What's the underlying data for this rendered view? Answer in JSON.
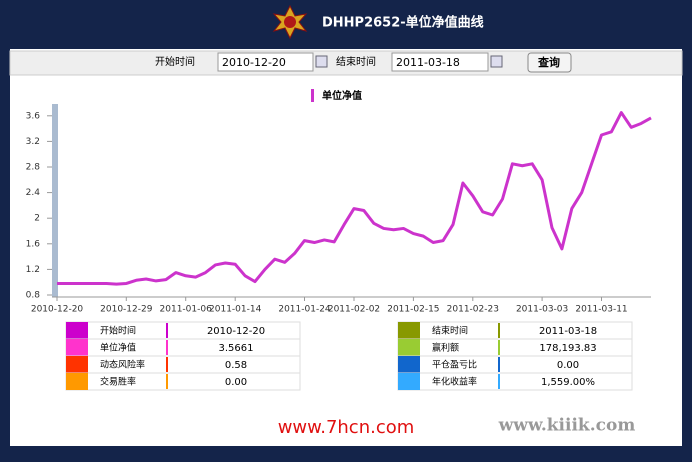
{
  "chart_data": {
    "type": "line",
    "title": "DHHP2652-单位净值曲线",
    "categories": [
      "2010-12-20",
      null,
      null,
      null,
      null,
      null,
      null,
      "2010-12-29",
      null,
      null,
      null,
      null,
      null,
      "2011-01-06",
      null,
      null,
      null,
      null,
      "2011-01-14",
      null,
      null,
      null,
      null,
      null,
      null,
      "2011-01-24",
      null,
      null,
      null,
      null,
      "2011-02-02",
      null,
      null,
      null,
      null,
      null,
      "2011-02-15",
      null,
      null,
      null,
      null,
      null,
      "2011-02-23",
      null,
      null,
      null,
      null,
      null,
      null,
      "2011-03-03",
      null,
      null,
      null,
      null,
      null,
      "2011-03-11",
      null,
      null,
      null,
      null,
      null
    ],
    "series": [
      {
        "name": "单位净值",
        "color": "#cc33cc",
        "values": [
          0.98,
          0.98,
          0.98,
          0.98,
          0.98,
          0.98,
          0.97,
          0.98,
          1.03,
          1.05,
          1.02,
          1.04,
          1.15,
          1.1,
          1.08,
          1.15,
          1.27,
          1.3,
          1.28,
          1.1,
          1.01,
          1.2,
          1.36,
          1.31,
          1.45,
          1.65,
          1.62,
          1.66,
          1.63,
          1.9,
          2.15,
          2.12,
          1.92,
          1.84,
          1.82,
          1.84,
          1.76,
          1.72,
          1.62,
          1.65,
          1.9,
          2.55,
          2.35,
          2.1,
          2.05,
          2.3,
          2.85,
          2.82,
          2.85,
          2.6,
          1.85,
          1.52,
          2.15,
          2.4,
          2.85,
          3.3,
          3.35,
          3.65,
          3.42,
          3.48,
          3.5661
        ]
      }
    ],
    "ylim": [
      0.8,
      3.8
    ],
    "yticks": [
      0.8,
      1.2,
      1.6,
      2,
      2.4,
      2.8,
      3.2,
      3.6
    ],
    "grid": false
  },
  "form": {
    "start_label": "开始时间",
    "start_value": "2010-12-20",
    "end_label": "结束时间",
    "end_value": "2011-03-18",
    "button": "查询"
  },
  "stats": {
    "left": [
      {
        "color": "#cc00cc",
        "label": "开始时间",
        "value": "2010-12-20"
      },
      {
        "color": "#ff33cc",
        "label": "单位净值",
        "value": "3.5661"
      },
      {
        "color": "#ff3300",
        "label": "动态风险率",
        "value": "0.58"
      },
      {
        "color": "#ff9900",
        "label": "交易胜率",
        "value": "0.00"
      }
    ],
    "right": [
      {
        "color": "#889900",
        "label": "结束时间",
        "value": "2011-03-18"
      },
      {
        "color": "#99cc33",
        "label": "赢利额",
        "value": "178,193.83"
      },
      {
        "color": "#1166cc",
        "label": "平仓盈亏比",
        "value": "0.00"
      },
      {
        "color": "#33aaff",
        "label": "年化收益率",
        "value": "1,559.00%"
      }
    ]
  },
  "watermarks": {
    "left": "www.7hcn.com",
    "right": "www.kiiik.com"
  }
}
